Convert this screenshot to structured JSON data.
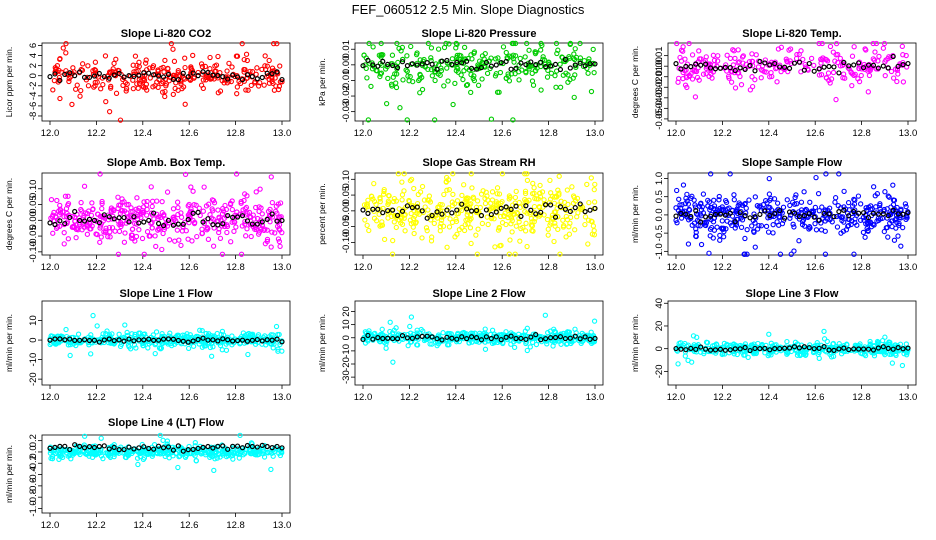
{
  "title": "FEF_060512  2.5 Min. Slope Diagnostics",
  "colors": {
    "axis": "#000000",
    "ref": "#000000"
  },
  "x_ticks": [
    "12.0",
    "12.2",
    "12.4",
    "12.6",
    "12.8",
    "13.0"
  ],
  "chart_data": [
    {
      "type": "scatter",
      "title": "Slope Li-820 CO2",
      "ylabel": "Licor ppm per min.",
      "color": "#ff0000",
      "xlim": [
        12.0,
        13.0
      ],
      "ylim": [
        -9,
        6.5
      ],
      "yticks": [
        -8,
        -6,
        -4,
        -2,
        0,
        2,
        4,
        6
      ],
      "ytick_labels": [
        "-8",
        "-6",
        "-4",
        "-2",
        "0",
        "2",
        "4",
        "6"
      ],
      "noise": 1.8,
      "spread_high": 0.6,
      "spread_low": -0.6,
      "n": 300,
      "seed": 11
    },
    {
      "type": "scatter",
      "title": "Slope Li-820 Pressure",
      "ylabel": "kPa per min.",
      "color": "#00cc00",
      "xlim": [
        12.0,
        13.0
      ],
      "ylim": [
        -0.036,
        0.014
      ],
      "yticks": [
        -0.03,
        -0.02,
        -0.01,
        0.0,
        0.01
      ],
      "ytick_labels": [
        "-0.03",
        "-0.02",
        "-0.01",
        "0.00",
        "0.01"
      ],
      "noise": 0.007,
      "spread_high": 0.001,
      "spread_low": -0.001,
      "n": 300,
      "seed": 23
    },
    {
      "type": "scatter",
      "title": "Slope Li-820 Temp.",
      "ylabel": "degrees C per min.",
      "color": "#ff00ff",
      "xlim": [
        12.0,
        13.0
      ],
      "ylim": [
        -0.052,
        0.022
      ],
      "yticks": [
        -0.05,
        -0.04,
        -0.03,
        -0.02,
        -0.01,
        0.0,
        0.01
      ],
      "ytick_labels": [
        "-0.05",
        "-0.04",
        "-0.03",
        "-0.02",
        "-0.01",
        "0.00",
        "0.01"
      ],
      "noise": 0.009,
      "spread_high": 0.002,
      "spread_low": -0.002,
      "n": 260,
      "seed": 37
    },
    {
      "type": "scatter",
      "title": "Slope Amb. Box Temp.",
      "ylabel": "degrees C per min.",
      "color": "#ff00ff",
      "xlim": [
        12.0,
        13.0
      ],
      "ylim": [
        -0.11,
        0.15
      ],
      "yticks": [
        -0.1,
        -0.05,
        0.0,
        0.05,
        0.1
      ],
      "ytick_labels": [
        "-0.10",
        "-0.05",
        "0.00",
        "0.05",
        "0.10"
      ],
      "noise": 0.035,
      "spread_high": 0.01,
      "spread_low": -0.01,
      "n": 420,
      "seed": 41
    },
    {
      "type": "scatter",
      "title": "Slope Gas Stream RH",
      "ylabel": "percent per min.",
      "color": "#ffff00",
      "xlim": [
        12.0,
        13.0
      ],
      "ylim": [
        -0.14,
        0.12
      ],
      "yticks": [
        -0.1,
        -0.05,
        0.0,
        0.05,
        0.1
      ],
      "ytick_labels": [
        "-0.10",
        "-0.05",
        "0.00",
        "0.05",
        "0.10"
      ],
      "noise": 0.045,
      "spread_high": 0.01,
      "spread_low": -0.01,
      "n": 420,
      "seed": 53
    },
    {
      "type": "scatter",
      "title": "Slope Sample Flow",
      "ylabel": "ml/min per min.",
      "color": "#0000ff",
      "xlim": [
        12.0,
        13.0
      ],
      "ylim": [
        -1.1,
        1.15
      ],
      "yticks": [
        -1.0,
        -0.5,
        0.0,
        0.5,
        1.0
      ],
      "ytick_labels": [
        "-1.0",
        "-0.5",
        "0.0",
        "0.5",
        "1.0"
      ],
      "noise": 0.25,
      "spread_high": 0.05,
      "spread_low": -0.05,
      "n": 420,
      "seed": 67
    },
    {
      "type": "scatter",
      "title": "Slope Line 1 Flow",
      "ylabel": "ml/min per min.",
      "color": "#00ffff",
      "xlim": [
        12.0,
        13.0
      ],
      "ylim": [
        -23,
        20
      ],
      "yticks": [
        -20,
        -10,
        0,
        10
      ],
      "ytick_labels": [
        "-20",
        "-10",
        "0",
        "10"
      ],
      "noise": 1.6,
      "spread_high": 0.3,
      "spread_low": -0.3,
      "n": 420,
      "seed": 71
    },
    {
      "type": "scatter",
      "title": "Slope Line 2 Flow",
      "ylabel": "ml/min per min.",
      "color": "#00ffff",
      "xlim": [
        12.0,
        13.0
      ],
      "ylim": [
        -36,
        28
      ],
      "yticks": [
        -30,
        -20,
        -10,
        0,
        10,
        20
      ],
      "ytick_labels": [
        "-30",
        "-20",
        "-10",
        "0",
        "10",
        "20"
      ],
      "noise": 2.5,
      "spread_high": 1.0,
      "spread_low": -1.0,
      "n": 420,
      "seed": 83
    },
    {
      "type": "scatter",
      "title": "Slope Line 3 Flow",
      "ylabel": "ml/min per min.",
      "color": "#00ffff",
      "xlim": [
        12.0,
        13.0
      ],
      "ylim": [
        -32,
        42
      ],
      "yticks": [
        -20,
        0,
        20,
        40
      ],
      "ytick_labels": [
        "-20",
        "0",
        "20",
        "40"
      ],
      "noise": 2.8,
      "spread_high": 1.0,
      "spread_low": -1.0,
      "n": 420,
      "seed": 97
    },
    {
      "type": "scatter",
      "title": "Slope Line 4 (LT) Flow",
      "ylabel": "ml/min per min.",
      "color": "#00ffff",
      "xlim": [
        12.0,
        13.0
      ],
      "ylim": [
        -1.08,
        0.3
      ],
      "yticks": [
        -1.0,
        -0.8,
        -0.6,
        -0.4,
        -0.2,
        0.0,
        0.2
      ],
      "ytick_labels": [
        "-1.0",
        "-0.8",
        "-0.6",
        "-0.4",
        "-0.2",
        "0.0",
        "0.2"
      ],
      "noise": 0.05,
      "spread_high": 0.12,
      "spread_low": 0.04,
      "n": 420,
      "seed": 101
    }
  ]
}
